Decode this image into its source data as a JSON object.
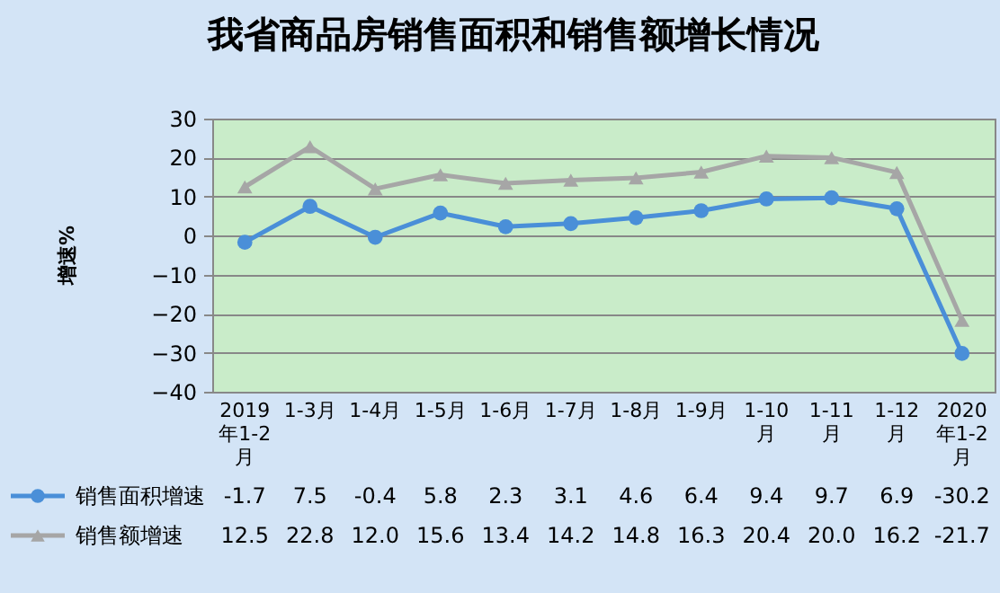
{
  "chart_data": {
    "type": "line",
    "title": "我省商品房销售面积和销售额增长情况",
    "ylabel": "增速%",
    "categories": [
      "2019年1-2月",
      "1-3月",
      "1-4月",
      "1-5月",
      "1-6月",
      "1-7月",
      "1-8月",
      "1-9月",
      "1-10月",
      "1-11月",
      "1-12月",
      "2020年1-2月"
    ],
    "series": [
      {
        "name": "销售面积增速",
        "color": "#4a8fd8",
        "marker": "circle",
        "values": [
          -1.7,
          7.5,
          -0.4,
          5.8,
          2.3,
          3.1,
          4.6,
          6.4,
          9.4,
          9.7,
          6.9,
          -30.2
        ],
        "value_labels": [
          "-1.7",
          "7.5",
          "-0.4",
          "5.8",
          "2.3",
          "3.1",
          "4.6",
          "6.4",
          "9.4",
          "9.7",
          "6.9",
          "-30.2"
        ]
      },
      {
        "name": "销售额增速",
        "color": "#a6a6a6",
        "marker": "triangle",
        "values": [
          12.5,
          22.8,
          12.0,
          15.6,
          13.4,
          14.2,
          14.8,
          16.3,
          20.4,
          20.0,
          16.2,
          -21.7
        ],
        "value_labels": [
          "12.5",
          "22.8",
          "12.0",
          "15.6",
          "13.4",
          "14.2",
          "14.8",
          "16.3",
          "20.4",
          "20.0",
          "16.2",
          "-21.7"
        ]
      }
    ],
    "ylim": [
      -40,
      30
    ],
    "yticks": [
      -40,
      -30,
      -20,
      -10,
      0,
      10,
      20,
      30
    ],
    "grid": "y",
    "legend": "bottom left"
  }
}
